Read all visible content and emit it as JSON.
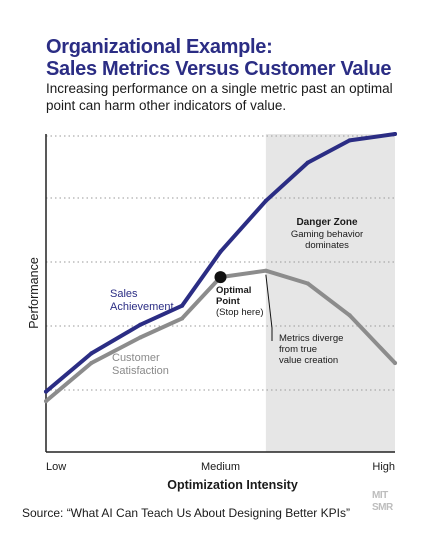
{
  "header": {
    "title_line1": "Organizational Example:",
    "title_line2": "Sales Metrics Versus Customer Value",
    "subtitle": "Increasing performance on a single metric past an optimal point can harm other indicators of value."
  },
  "footer": {
    "source": "Source: “What AI Can Teach Us About Designing Better KPIs”",
    "logo_line1": "MIT",
    "logo_line2": "SMR"
  },
  "chart_data": {
    "type": "line",
    "xlabel": "Optimization Intensity",
    "ylabel": "Performance",
    "xlim": [
      0,
      10
    ],
    "ylim": [
      0,
      10
    ],
    "x_ticks": [
      {
        "value": 0,
        "label": "Low"
      },
      {
        "value": 5,
        "label": "Medium"
      },
      {
        "value": 10,
        "label": "High"
      }
    ],
    "grid": "horizontal dotted",
    "shaded_region": {
      "x_start": 6.3,
      "x_end": 10,
      "label_title": "Danger Zone",
      "label_text": "Gaming behavior dominates",
      "color": "#e6e6e6"
    },
    "series": [
      {
        "name": "Sales Achievement",
        "color": "#2b2d84",
        "points": [
          [
            0,
            1.9
          ],
          [
            1.3,
            3.1
          ],
          [
            2.7,
            4.0
          ],
          [
            3.9,
            4.6
          ],
          [
            5.0,
            6.3
          ],
          [
            6.3,
            7.9
          ],
          [
            7.5,
            9.1
          ],
          [
            8.7,
            9.8
          ],
          [
            10.0,
            10.0
          ]
        ]
      },
      {
        "name": "Customer Satisfaction",
        "color": "#8c8c8c",
        "points": [
          [
            0,
            1.6
          ],
          [
            1.3,
            2.8
          ],
          [
            2.7,
            3.6
          ],
          [
            3.9,
            4.2
          ],
          [
            5.0,
            5.5
          ],
          [
            6.3,
            5.7
          ],
          [
            7.5,
            5.3
          ],
          [
            8.7,
            4.3
          ],
          [
            10.0,
            2.8
          ]
        ]
      }
    ],
    "annotations": [
      {
        "text_title": "Optimal",
        "text_title2": "Point",
        "text": "(Stop here)",
        "x": 5.0,
        "y": 5.5
      },
      {
        "text": "Metrics diverge from true value creation",
        "lines": [
          "Metrics diverge",
          "from true",
          "value creation"
        ],
        "x": 6.3,
        "y": 5.7
      }
    ]
  }
}
